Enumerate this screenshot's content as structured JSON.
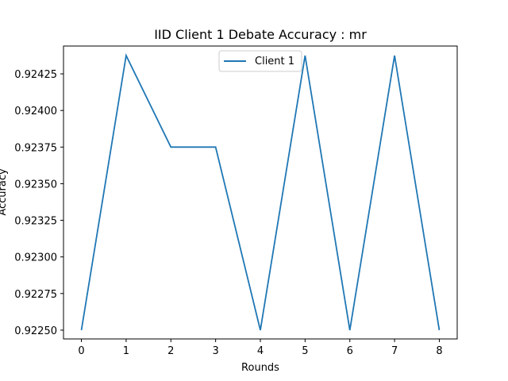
{
  "chart_data": {
    "type": "line",
    "title": "IID Client 1 Debate Accuracy : mr",
    "xlabel": "Rounds",
    "ylabel": "Accuracy",
    "x": [
      0,
      1,
      2,
      3,
      4,
      5,
      6,
      7,
      8
    ],
    "xticks": [
      "0",
      "1",
      "2",
      "3",
      "4",
      "5",
      "6",
      "7",
      "8"
    ],
    "yticks": [
      "0.92250",
      "0.92275",
      "0.92300",
      "0.92325",
      "0.92350",
      "0.92375",
      "0.92400",
      "0.92425"
    ],
    "ytick_values": [
      0.9225,
      0.92275,
      0.923,
      0.92325,
      0.9235,
      0.92375,
      0.924,
      0.92425
    ],
    "xlim": [
      -0.4,
      8.4
    ],
    "ylim": [
      0.92244,
      0.92444
    ],
    "grid": false,
    "legend_position": "top-center",
    "series": [
      {
        "name": "Client 1",
        "color": "#1f77b4",
        "values": [
          0.9225,
          0.924375,
          0.92375,
          0.92375,
          0.9225,
          0.924375,
          0.9225,
          0.924375,
          0.9225
        ]
      }
    ]
  }
}
